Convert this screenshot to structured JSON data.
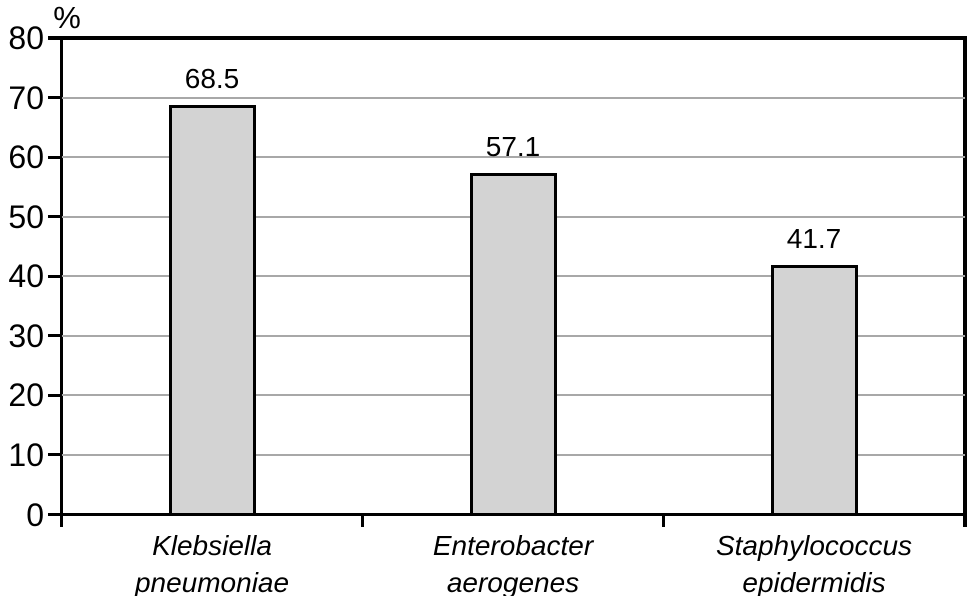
{
  "chart_data": {
    "type": "bar",
    "title": "",
    "unit_label": "%",
    "categories": [
      [
        "Klebsiella",
        "pneumoniae"
      ],
      [
        "Enterobacter",
        "aerogenes"
      ],
      [
        "Staphylococcus",
        "epidermidis"
      ]
    ],
    "values": [
      68.5,
      57.1,
      41.7
    ],
    "value_labels": [
      "68.5",
      "57.1",
      "41.7"
    ],
    "yticks": [
      0,
      10,
      20,
      30,
      40,
      50,
      60,
      70,
      80
    ],
    "ylim": [
      0,
      80
    ],
    "grid": true,
    "legend": "none",
    "category_style": "italic",
    "colors": {
      "bar_fill": "#d3d3d3",
      "bar_border": "#000000",
      "gridline": "#a8a8a8",
      "axis": "#000000",
      "text": "#000000",
      "background": "#ffffff"
    }
  }
}
